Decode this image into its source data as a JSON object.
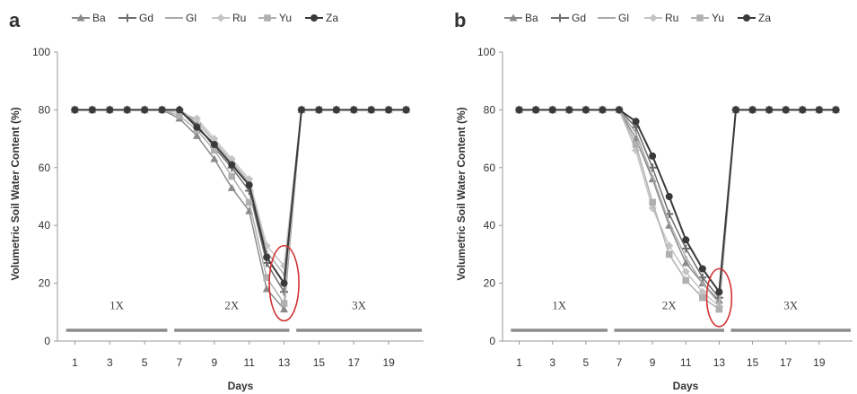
{
  "colors": {
    "Ba": "#8a8a8a",
    "Gd": "#6e6e6e",
    "Gl": "#aaaaaa",
    "Ru": "#c4c4c4",
    "Yu": "#b0b0b0",
    "Za": "#3a3a3a",
    "axis": "#999999",
    "ellipse": "#d23232",
    "phase_bar": "#8c8c8c"
  },
  "chart_data": [
    {
      "type": "line",
      "panel_label": "a",
      "xlabel": "Days",
      "ylabel": "Volumetric Soil Water Content (%)",
      "xlim": [
        0,
        21
      ],
      "ylim": [
        0,
        100
      ],
      "yticks": [
        0,
        20,
        40,
        60,
        80,
        100
      ],
      "xticks": [
        1,
        3,
        5,
        7,
        9,
        11,
        13,
        15,
        17,
        19
      ],
      "legend": "top",
      "grid": false,
      "phases": [
        {
          "label": "1X",
          "from": 0.5,
          "to": 6.3
        },
        {
          "label": "2X",
          "from": 6.7,
          "to": 13.3
        },
        {
          "label": "3X",
          "from": 13.7,
          "to": 21
        }
      ],
      "highlight": {
        "x": 13,
        "y": 20,
        "rx": 0.85,
        "ry": 13
      },
      "series": [
        {
          "name": "Ba",
          "marker": "triangle",
          "x": [
            1,
            2,
            3,
            4,
            5,
            6,
            7,
            8,
            9,
            10,
            11,
            12,
            13,
            14,
            15,
            16,
            17,
            18,
            19,
            20
          ],
          "values": [
            80,
            80,
            80,
            80,
            80,
            80,
            77,
            71,
            63,
            53,
            45,
            18,
            11,
            80,
            80,
            80,
            80,
            80,
            80,
            80
          ]
        },
        {
          "name": "Gd",
          "marker": "plus",
          "x": [
            1,
            2,
            3,
            4,
            5,
            6,
            7,
            8,
            9,
            10,
            11,
            12,
            13,
            14,
            15,
            16,
            17,
            18,
            19,
            20
          ],
          "values": [
            80,
            80,
            80,
            80,
            80,
            80,
            80,
            75,
            67,
            60,
            52,
            27,
            17,
            80,
            80,
            80,
            80,
            80,
            80,
            80
          ]
        },
        {
          "name": "Gl",
          "marker": "none",
          "x": [
            1,
            2,
            3,
            4,
            5,
            6,
            7,
            8,
            9,
            10,
            11,
            12,
            13,
            14,
            15,
            16,
            17,
            18,
            19,
            20
          ],
          "values": [
            80,
            80,
            80,
            80,
            80,
            80,
            80,
            76,
            69,
            62,
            55,
            31,
            23,
            80,
            80,
            80,
            80,
            80,
            80,
            80
          ]
        },
        {
          "name": "Ru",
          "marker": "diamond",
          "x": [
            1,
            2,
            3,
            4,
            5,
            6,
            7,
            8,
            9,
            10,
            11,
            12,
            13,
            14,
            15,
            16,
            17,
            18,
            19,
            20
          ],
          "values": [
            80,
            80,
            80,
            80,
            80,
            80,
            79,
            77,
            70,
            63,
            56,
            33,
            26,
            80,
            80,
            80,
            80,
            80,
            80,
            80
          ]
        },
        {
          "name": "Yu",
          "marker": "square",
          "x": [
            1,
            2,
            3,
            4,
            5,
            6,
            7,
            8,
            9,
            10,
            11,
            12,
            13,
            14,
            15,
            16,
            17,
            18,
            19,
            20
          ],
          "values": [
            80,
            80,
            80,
            80,
            80,
            80,
            78,
            73,
            66,
            57,
            48,
            22,
            13,
            80,
            80,
            80,
            80,
            80,
            80,
            80
          ]
        },
        {
          "name": "Za",
          "marker": "circle",
          "x": [
            1,
            2,
            3,
            4,
            5,
            6,
            7,
            8,
            9,
            10,
            11,
            12,
            13,
            14,
            15,
            16,
            17,
            18,
            19,
            20
          ],
          "values": [
            80,
            80,
            80,
            80,
            80,
            80,
            80,
            74,
            68,
            61,
            54,
            29,
            20,
            80,
            80,
            80,
            80,
            80,
            80,
            80
          ]
        }
      ]
    },
    {
      "type": "line",
      "panel_label": "b",
      "xlabel": "Days",
      "ylabel": "Volumetric Soil Water Content (%)",
      "xlim": [
        0,
        21
      ],
      "ylim": [
        0,
        100
      ],
      "yticks": [
        0,
        20,
        40,
        60,
        80,
        100
      ],
      "xticks": [
        1,
        3,
        5,
        7,
        9,
        11,
        13,
        15,
        17,
        19
      ],
      "legend": "top",
      "grid": false,
      "phases": [
        {
          "label": "1X",
          "from": 0.5,
          "to": 6.3
        },
        {
          "label": "2X",
          "from": 6.7,
          "to": 13.3
        },
        {
          "label": "3X",
          "from": 13.7,
          "to": 21
        }
      ],
      "highlight": {
        "x": 13,
        "y": 15,
        "rx": 0.75,
        "ry": 10
      },
      "series": [
        {
          "name": "Ba",
          "marker": "triangle",
          "x": [
            1,
            2,
            3,
            4,
            5,
            6,
            7,
            8,
            9,
            10,
            11,
            12,
            13,
            14,
            15,
            16,
            17,
            18,
            19,
            20
          ],
          "values": [
            80,
            80,
            80,
            80,
            80,
            80,
            80,
            70,
            56,
            40,
            27,
            20,
            14,
            80,
            80,
            80,
            80,
            80,
            80,
            80
          ]
        },
        {
          "name": "Gd",
          "marker": "plus",
          "x": [
            1,
            2,
            3,
            4,
            5,
            6,
            7,
            8,
            9,
            10,
            11,
            12,
            13,
            14,
            15,
            16,
            17,
            18,
            19,
            20
          ],
          "values": [
            80,
            80,
            80,
            80,
            80,
            80,
            80,
            74,
            60,
            44,
            32,
            22,
            15,
            80,
            80,
            80,
            80,
            80,
            80,
            80
          ]
        },
        {
          "name": "Gl",
          "marker": "none",
          "x": [
            1,
            2,
            3,
            4,
            5,
            6,
            7,
            8,
            9,
            10,
            11,
            12,
            13,
            14,
            15,
            16,
            17,
            18,
            19,
            20
          ],
          "values": [
            80,
            80,
            80,
            80,
            80,
            80,
            80,
            72,
            57,
            41,
            29,
            20,
            13,
            80,
            80,
            80,
            80,
            80,
            80,
            80
          ]
        },
        {
          "name": "Ru",
          "marker": "diamond",
          "x": [
            1,
            2,
            3,
            4,
            5,
            6,
            7,
            8,
            9,
            10,
            11,
            12,
            13,
            14,
            15,
            16,
            17,
            18,
            19,
            20
          ],
          "values": [
            80,
            80,
            80,
            80,
            80,
            80,
            80,
            66,
            46,
            33,
            24,
            17,
            12,
            80,
            80,
            80,
            80,
            80,
            80,
            80
          ]
        },
        {
          "name": "Yu",
          "marker": "square",
          "x": [
            1,
            2,
            3,
            4,
            5,
            6,
            7,
            8,
            9,
            10,
            11,
            12,
            13,
            14,
            15,
            16,
            17,
            18,
            19,
            20
          ],
          "values": [
            80,
            80,
            80,
            80,
            80,
            80,
            80,
            68,
            48,
            30,
            21,
            15,
            11,
            80,
            80,
            80,
            80,
            80,
            80,
            80
          ]
        },
        {
          "name": "Za",
          "marker": "circle",
          "x": [
            1,
            2,
            3,
            4,
            5,
            6,
            7,
            8,
            9,
            10,
            11,
            12,
            13,
            14,
            15,
            16,
            17,
            18,
            19,
            20
          ],
          "values": [
            80,
            80,
            80,
            80,
            80,
            80,
            80,
            76,
            64,
            50,
            35,
            25,
            17,
            80,
            80,
            80,
            80,
            80,
            80,
            80
          ]
        }
      ]
    }
  ]
}
